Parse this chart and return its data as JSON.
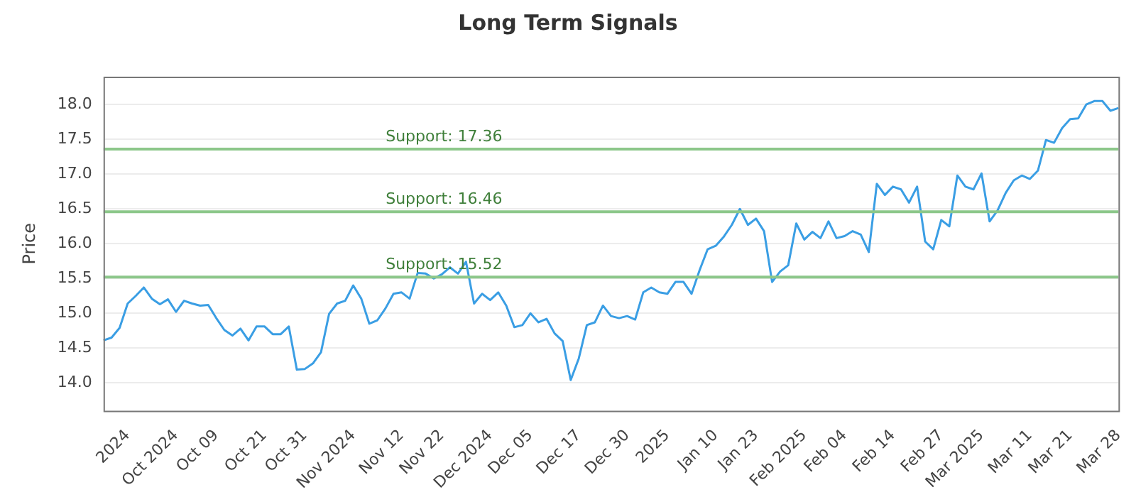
{
  "chart_data": {
    "type": "line",
    "title": "Long Term Signals",
    "ylabel": "Price",
    "categories": [
      null,
      null,
      null,
      "2024",
      null,
      null,
      null,
      null,
      null,
      "Oct 2024",
      null,
      null,
      null,
      null,
      "Oct 09",
      null,
      null,
      null,
      null,
      null,
      "Oct 21",
      null,
      null,
      null,
      null,
      "Oct 31",
      null,
      null,
      null,
      null,
      null,
      "Nov 2024",
      null,
      null,
      null,
      null,
      null,
      "Nov 12",
      null,
      null,
      null,
      null,
      "Nov 22",
      null,
      null,
      null,
      null,
      null,
      "Dec 2024",
      null,
      null,
      null,
      null,
      "Dec 05",
      null,
      null,
      null,
      null,
      null,
      "Dec 17",
      null,
      null,
      null,
      null,
      null,
      "Dec 30",
      null,
      null,
      null,
      null,
      "2025",
      null,
      null,
      null,
      null,
      null,
      "Jan 10",
      null,
      null,
      null,
      null,
      "Jan 23",
      null,
      null,
      null,
      null,
      null,
      "Feb 2025",
      null,
      null,
      null,
      null,
      "Feb 04",
      null,
      null,
      null,
      null,
      null,
      "Feb 14",
      null,
      null,
      null,
      null,
      null,
      "Feb 27",
      null,
      null,
      null,
      null,
      "Mar 2025",
      null,
      null,
      null,
      null,
      null,
      "Mar 11",
      null,
      null,
      null,
      null,
      "Mar 21",
      null,
      null,
      null,
      null,
      null,
      "Mar 28"
    ],
    "series": [
      {
        "color": "#3a9ee4",
        "values": [
          14.61,
          14.65,
          14.79,
          15.14,
          15.25,
          15.37,
          15.21,
          15.13,
          15.2,
          15.02,
          15.18,
          15.14,
          15.11,
          15.12,
          14.93,
          14.76,
          14.68,
          14.78,
          14.61,
          14.81,
          14.81,
          14.7,
          14.7,
          14.81,
          14.19,
          14.2,
          14.28,
          14.44,
          14.99,
          15.14,
          15.18,
          15.4,
          15.21,
          14.85,
          14.9,
          15.07,
          15.28,
          15.3,
          15.21,
          15.58,
          15.57,
          15.5,
          15.56,
          15.66,
          15.57,
          15.74,
          15.14,
          15.28,
          15.19,
          15.3,
          15.11,
          14.8,
          14.83,
          15.0,
          14.87,
          14.92,
          14.71,
          14.6,
          14.04,
          14.35,
          14.83,
          14.87,
          15.11,
          14.96,
          14.93,
          14.96,
          14.91,
          15.3,
          15.37,
          15.3,
          15.28,
          15.45,
          15.45,
          15.28,
          15.62,
          15.92,
          15.97,
          16.1,
          16.27,
          16.5,
          16.27,
          16.36,
          16.18,
          15.45,
          15.6,
          15.69,
          16.29,
          16.06,
          16.17,
          16.08,
          16.32,
          16.08,
          16.11,
          16.18,
          16.13,
          15.88,
          16.86,
          16.7,
          16.82,
          16.78,
          16.59,
          16.82,
          16.03,
          15.92,
          16.34,
          16.25,
          16.98,
          16.82,
          16.78,
          17.01,
          16.32,
          16.48,
          16.73,
          16.91,
          16.98,
          16.93,
          17.05,
          17.49,
          17.45,
          17.66,
          17.79,
          17.8,
          18.0,
          18.05,
          18.05,
          17.91,
          17.95
        ]
      }
    ],
    "ylim": [
      13.6,
      18.4
    ],
    "yticks": [
      {
        "value": 14,
        "label": "14.0"
      },
      {
        "value": 14.5,
        "label": "14.5"
      },
      {
        "value": 15,
        "label": "15.0"
      },
      {
        "value": 15.5,
        "label": "15.5"
      },
      {
        "value": 16,
        "label": "16.0"
      },
      {
        "value": 16.5,
        "label": "16.5"
      },
      {
        "value": 17,
        "label": "17.0"
      },
      {
        "value": 17.5,
        "label": "17.5"
      },
      {
        "value": 18,
        "label": "18.0"
      }
    ],
    "ref_lines": [
      {
        "axis": "y",
        "value": 17.36,
        "label": "Support: 17.36",
        "color": "#8cc78a"
      },
      {
        "axis": "y",
        "value": 16.46,
        "label": "Support: 16.46",
        "color": "#8cc78a"
      },
      {
        "axis": "y",
        "value": 15.52,
        "label": "Support: 15.52",
        "color": "#8cc78a"
      }
    ],
    "grid": "y",
    "legend": false,
    "marker": "none",
    "line_style": "solid"
  }
}
